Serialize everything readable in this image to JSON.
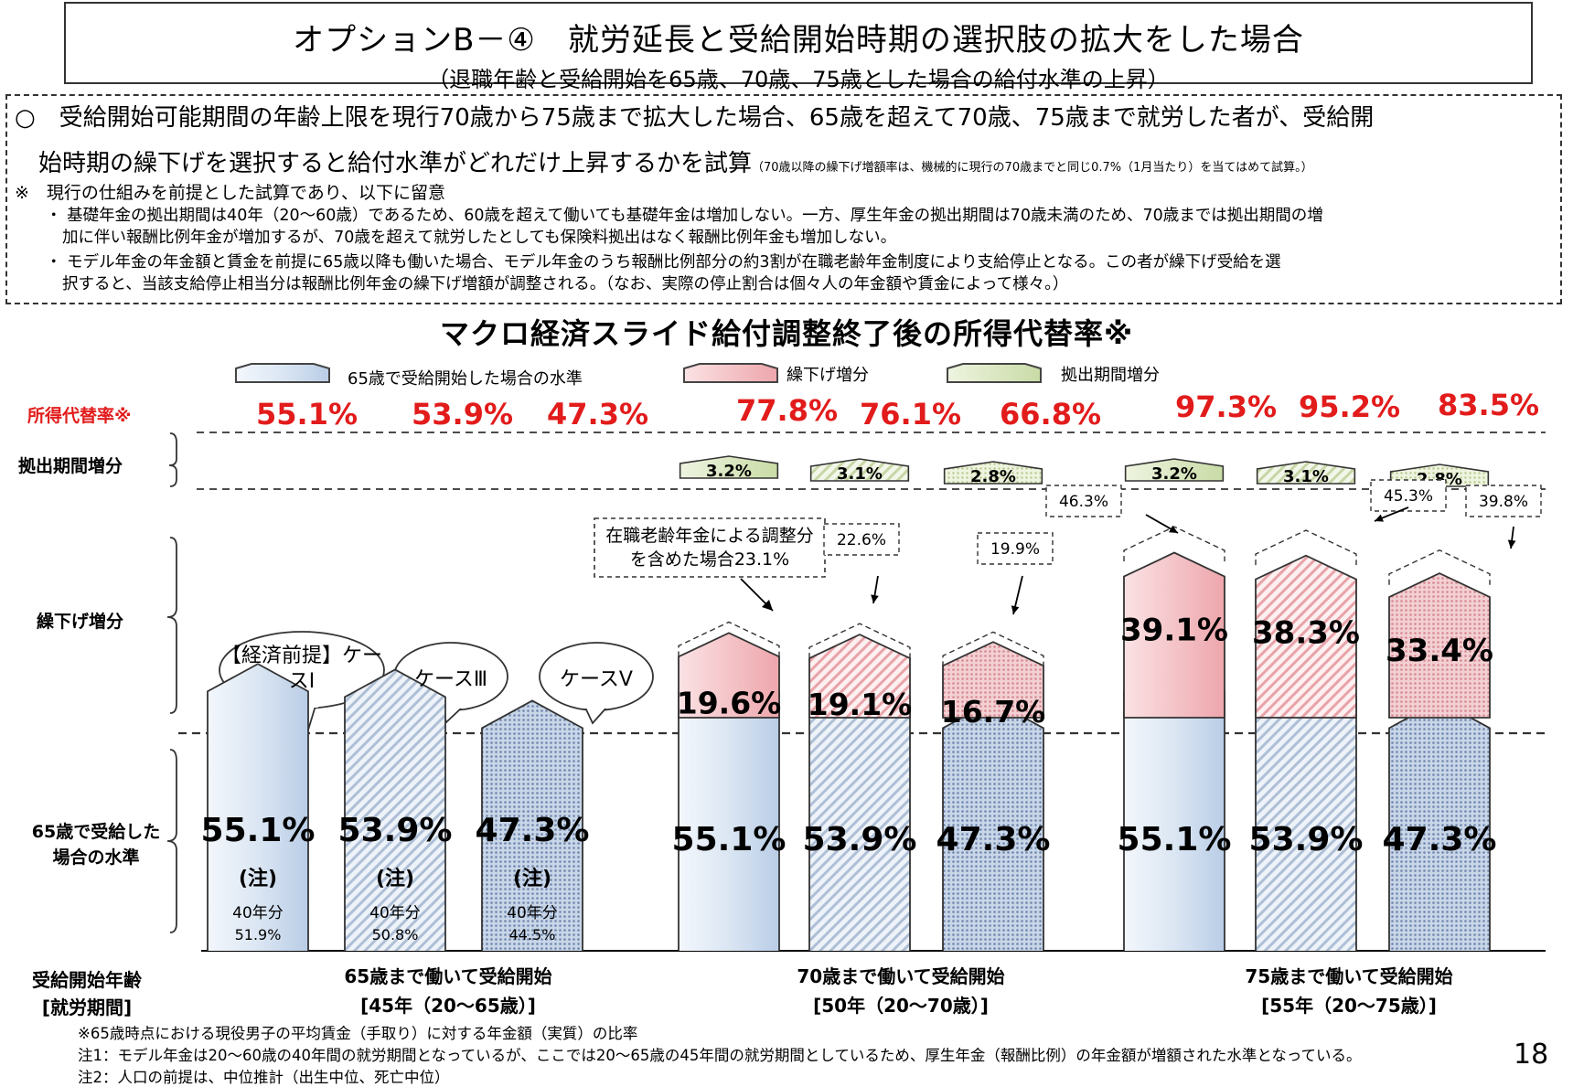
{
  "header": {
    "title": "オプションB－④　就労延長と受給開始時期の選択肢の拡大をした場合",
    "subtitle": "（退職年齢と受給開始を65歳、70歳、75歳とした場合の給付水準の上昇）"
  },
  "notes": {
    "para1_line1": "○　受給開始可能期間の年齢上限を現行70歳から75歳まで拡大した場合、65歳を超えて70歳、75歳まで就労した者が、受給開",
    "para1_line2": "始時期の繰下げを選択すると給付水準がどれだけ上昇するかを試算",
    "para1_small": "（70歳以降の繰下げ増額率は、機械的に現行の70歳までと同じ0.7%（1月当たり）を当てはめて試算。）",
    "para2": "※　現行の仕組みを前提とした試算であり、以下に留意",
    "bullet1_line1": "・ 基礎年金の拠出期間は40年（20～60歳）であるため、60歳を超えて働いても基礎年金は増加しない。一方、厚生年金の拠出期間は70歳未満のため、70歳までは拠出期間の増",
    "bullet1_line2": "加に伴い報酬比例年金が増加するが、70歳を超えて就労したとしても保険料拠出はなく報酬比例年金も増加しない。",
    "bullet2_line1": "・ モデル年金の年金額と賃金を前提に65歳以降も働いた場合、モデル年金のうち報酬比例部分の約3割が在職老齢年金制度により支給停止となる。この者が繰下げ受給を選",
    "bullet2_line2": "択すると、当該支給停止相当分は報酬比例年金の繰下げ増額が調整される。（なお、実際の停止割合は個々人の年金額や賃金によって様々。）"
  },
  "chart_data": {
    "type": "bar",
    "title": "マクロ経済スライド給付調整終了後の所得代替率※",
    "legend": [
      {
        "label": "65歳で受給開始した場合の水準",
        "color": "#dce8f5"
      },
      {
        "label": "繰下げ増分",
        "color": "#f4c4c8"
      },
      {
        "label": "拠出期間増分",
        "color": "#dfe9c8"
      }
    ],
    "row_labels": {
      "total": "所得代替率※",
      "contribution": "拠出期間増分",
      "deferral": "繰下げ増分",
      "base": "65歳で受給した場合の水準"
    },
    "axis_label": "受給開始年齢[就労期間]",
    "groups": [
      {
        "label": "65歳まで働いて受給開始",
        "period": "[45年（20～65歳）]"
      },
      {
        "label": "70歳まで働いて受給開始",
        "period": "[50年（20～70歳）]"
      },
      {
        "label": "75歳まで働いて受給開始",
        "period": "[55年（20～75歳）]"
      }
    ],
    "cases": [
      "【経済前提】ケースⅠ",
      "ケースⅢ",
      "ケースⅤ"
    ],
    "bars": [
      {
        "group": 0,
        "case": 0,
        "total": "55.1%",
        "base": "55.1%",
        "note": "(注)",
        "sub_label": "40年分",
        "sub_value": "51.9%"
      },
      {
        "group": 0,
        "case": 1,
        "total": "53.9%",
        "base": "53.9%",
        "note": "(注)",
        "sub_label": "40年分",
        "sub_value": "50.8%"
      },
      {
        "group": 0,
        "case": 2,
        "total": "47.3%",
        "base": "47.3%",
        "note": "(注)",
        "sub_label": "40年分",
        "sub_value": "44.5%"
      },
      {
        "group": 1,
        "case": 0,
        "total": "77.8%",
        "base": "55.1%",
        "deferral": "19.6%",
        "contribution": "3.2%",
        "adjusted": "在職老齢年金による調整分を含めた場合23.1%"
      },
      {
        "group": 1,
        "case": 1,
        "total": "76.1%",
        "base": "53.9%",
        "deferral": "19.1%",
        "contribution": "3.1%",
        "adjusted": "22.6%"
      },
      {
        "group": 1,
        "case": 2,
        "total": "66.8%",
        "base": "47.3%",
        "deferral": "16.7%",
        "contribution": "2.8%",
        "adjusted": "19.9%"
      },
      {
        "group": 2,
        "case": 0,
        "total": "97.3%",
        "base": "55.1%",
        "deferral": "39.1%",
        "contribution": "3.2%",
        "adjusted": "46.3%"
      },
      {
        "group": 2,
        "case": 1,
        "total": "95.2%",
        "base": "53.9%",
        "deferral": "38.3%",
        "contribution": "3.1%",
        "adjusted": "45.3%"
      },
      {
        "group": 2,
        "case": 2,
        "total": "83.5%",
        "base": "47.3%",
        "deferral": "33.4%",
        "contribution": "2.8%",
        "adjusted": "39.8%"
      }
    ]
  },
  "footnotes": {
    "f0": "※65歳時点における現役男子の平均賃金（手取り）に対する年金額（実質）の比率",
    "f1": "注1：モデル年金は20～60歳の40年間の就労期間となっているが、ここでは20～65歳の45年間の就労期間としているため、厚生年金（報酬比例）の年金額が増額された水準となっている。",
    "f2": "注2：人口の前提は、中位推計（出生中位、死亡中位）"
  },
  "page_number": "18"
}
